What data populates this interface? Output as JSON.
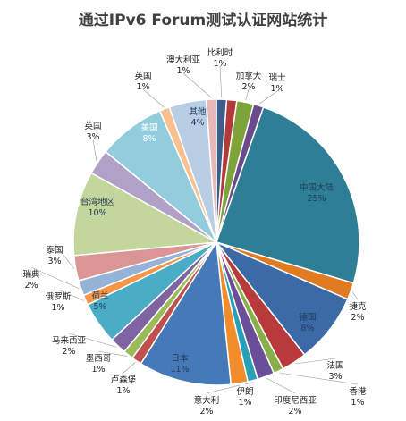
{
  "chart_data": {
    "type": "pie",
    "title": "通过IPv6 Forum测试认证网站统计",
    "slices": [
      {
        "name": "比利时",
        "pct_label": "1%",
        "value": 1.2,
        "color": "#3b5f8a"
      },
      {
        "name": "",
        "pct_label": "",
        "value": 1.2,
        "color": "#b33a3a"
      },
      {
        "name": "加拿大",
        "pct_label": "2%",
        "value": 2.0,
        "color": "#7ea33b"
      },
      {
        "name": "瑞士",
        "pct_label": "1%",
        "value": 1.2,
        "color": "#6a4a8c"
      },
      {
        "name": "中国大陆",
        "pct_label": "25%",
        "value": 25.5,
        "color": "#2e7f96"
      },
      {
        "name": "捷克",
        "pct_label": "2%",
        "value": 2.0,
        "color": "#e07b22"
      },
      {
        "name": "德国",
        "pct_label": "8%",
        "value": 8.3,
        "color": "#3b6aa6"
      },
      {
        "name": "法国",
        "pct_label": "3%",
        "value": 3.0,
        "color": "#b83a3a"
      },
      {
        "name": "香港",
        "pct_label": "1%",
        "value": 1.2,
        "color": "#8aae4a"
      },
      {
        "name": "印度尼西亚",
        "pct_label": "2%",
        "value": 2.0,
        "color": "#6b4e98"
      },
      {
        "name": "伊朗",
        "pct_label": "1%",
        "value": 1.2,
        "color": "#2aa0b8"
      },
      {
        "name": "意大利",
        "pct_label": "2%",
        "value": 2.0,
        "color": "#f08c2a"
      },
      {
        "name": "日本",
        "pct_label": "11%",
        "value": 11.0,
        "color": "#4679b8"
      },
      {
        "name": "卢森堡",
        "pct_label": "1%",
        "value": 1.2,
        "color": "#c0504d"
      },
      {
        "name": "墨西哥",
        "pct_label": "1%",
        "value": 1.2,
        "color": "#9bbb59"
      },
      {
        "name": "马来西亚",
        "pct_label": "2%",
        "value": 2.0,
        "color": "#8064a2"
      },
      {
        "name": "荷兰",
        "pct_label": "5%",
        "value": 5.0,
        "color": "#4bacc6"
      },
      {
        "name": "俄罗斯",
        "pct_label": "1%",
        "value": 1.2,
        "color": "#f79646"
      },
      {
        "name": "瑞典",
        "pct_label": "2%",
        "value": 1.8,
        "color": "#95b3d7"
      },
      {
        "name": "泰国",
        "pct_label": "3%",
        "value": 3.0,
        "color": "#d99694"
      },
      {
        "name": "台湾地区",
        "pct_label": "10%",
        "value": 10.0,
        "color": "#c3d69b"
      },
      {
        "name": "英国",
        "pct_label": "3%",
        "value": 3.0,
        "color": "#b2a1c7"
      },
      {
        "name": "美国",
        "pct_label": "8%",
        "value": 8.0,
        "color": "#93cddd"
      },
      {
        "name": "英国",
        "pct_label": "1%",
        "value": 1.2,
        "color": "#fac090"
      },
      {
        "name": "其他",
        "pct_label": "4%",
        "value": 4.4,
        "color": "#b9cde5"
      },
      {
        "name": "澳大利亚",
        "pct_label": "1%",
        "value": 1.2,
        "color": "#e6b9b8"
      }
    ]
  }
}
